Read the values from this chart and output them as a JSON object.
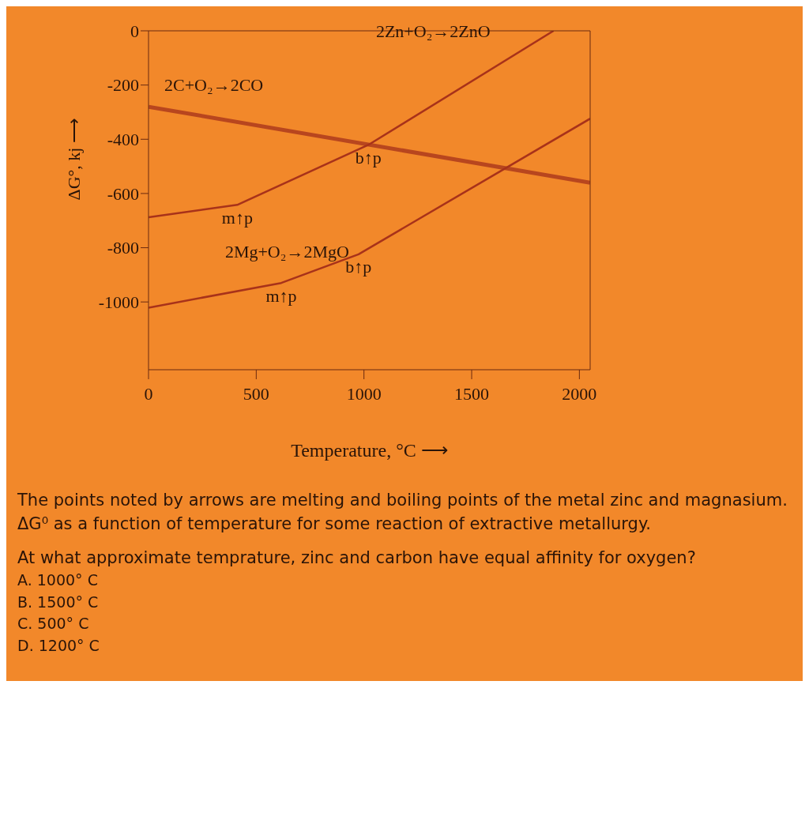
{
  "chart_data": {
    "type": "line",
    "xlabel": "Temperature, °C ⟶",
    "ylabel": "ΔG°, kj ⟶",
    "xlim": [
      0,
      2050
    ],
    "ylim": [
      -1250,
      0
    ],
    "xticks": [
      0,
      500,
      1000,
      1500,
      2000
    ],
    "yticks": [
      0,
      -200,
      -400,
      -600,
      -800,
      -1000
    ],
    "grid": false,
    "marker": "none",
    "line_style": "solid",
    "series": [
      {
        "name": "2C+O₂→2CO",
        "color": "#b8461e",
        "x": [
          0,
          2050
        ],
        "values": [
          -280,
          -560
        ]
      },
      {
        "name": "2Zn+O₂→2ZnO",
        "color": "#a8321a",
        "x": [
          0,
          412,
          1020,
          1880
        ],
        "values": [
          -688,
          -642,
          -421,
          0
        ]
      },
      {
        "name": "2Mg+O₂→2MgO",
        "color": "#a8321a",
        "x": [
          0,
          616,
          975,
          2050
        ],
        "values": [
          -1021,
          -930,
          -824,
          -324
        ]
      }
    ],
    "annotations": [
      {
        "text": "m↑p",
        "x": 412,
        "y": -642
      },
      {
        "text": "b↑p",
        "x": 1020,
        "y": -421
      },
      {
        "text": "m↑p",
        "x": 616,
        "y": -930
      },
      {
        "text": "b↑p",
        "x": 975,
        "y": -824
      },
      "The points noted by arrows are melting and boiling points of the metal zinc and magnasium. ΔG⁰ as a function of temperature for some reaction of extractive metallurgy.",
      "At what approximate temprature, zinc and carbon have equal affinity for oxygen?",
      "A. 1000° C",
      "B. 1500° C",
      "C. 500° C",
      "D. 1200° C"
    ]
  }
}
